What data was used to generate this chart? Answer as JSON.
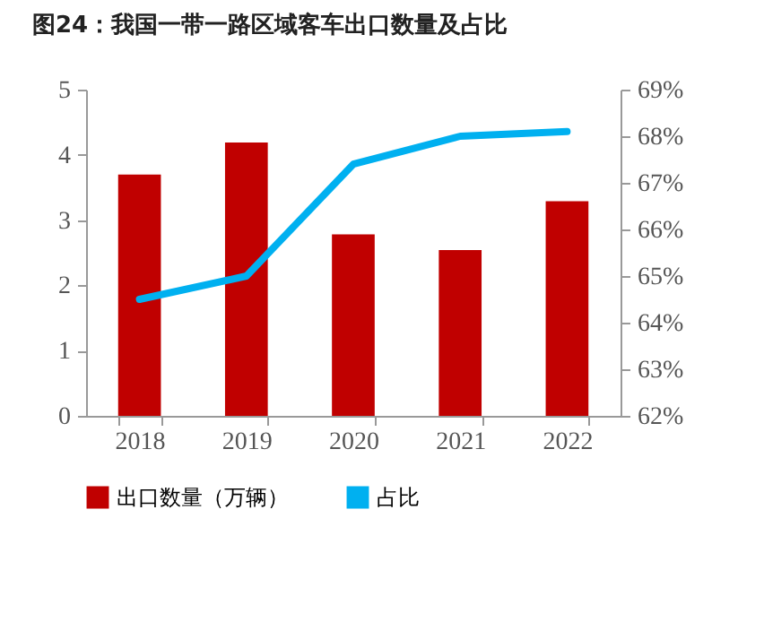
{
  "chart_data": {
    "type": "bar",
    "title": "图24：我国一带一路区域客车出口数量及占比",
    "categories": [
      "2018",
      "2019",
      "2020",
      "2021",
      "2022"
    ],
    "series": [
      {
        "name": "出口数量（万辆）",
        "color": "#c00000",
        "values": [
          3.7,
          4.19,
          2.78,
          2.54,
          3.29
        ]
      },
      {
        "name": "占比",
        "type": "line",
        "axis": "y2",
        "color": "#00b0f0",
        "values": [
          64.5,
          65.0,
          67.4,
          68.0,
          68.1
        ]
      }
    ],
    "ylim": [
      0,
      5
    ],
    "yticks": [
      0,
      1,
      2,
      3,
      4,
      5
    ],
    "y2lim": [
      62,
      69
    ],
    "y2ticks": [
      {
        "value": 62,
        "label": "62%"
      },
      {
        "value": 63,
        "label": "63%"
      },
      {
        "value": 64,
        "label": "64%"
      },
      {
        "value": 65,
        "label": "65%"
      },
      {
        "value": 66,
        "label": "66%"
      },
      {
        "value": 67,
        "label": "67%"
      },
      {
        "value": 68,
        "label": "68%"
      },
      {
        "value": 69,
        "label": "69%"
      }
    ],
    "legend": "bottom",
    "grid": false
  }
}
